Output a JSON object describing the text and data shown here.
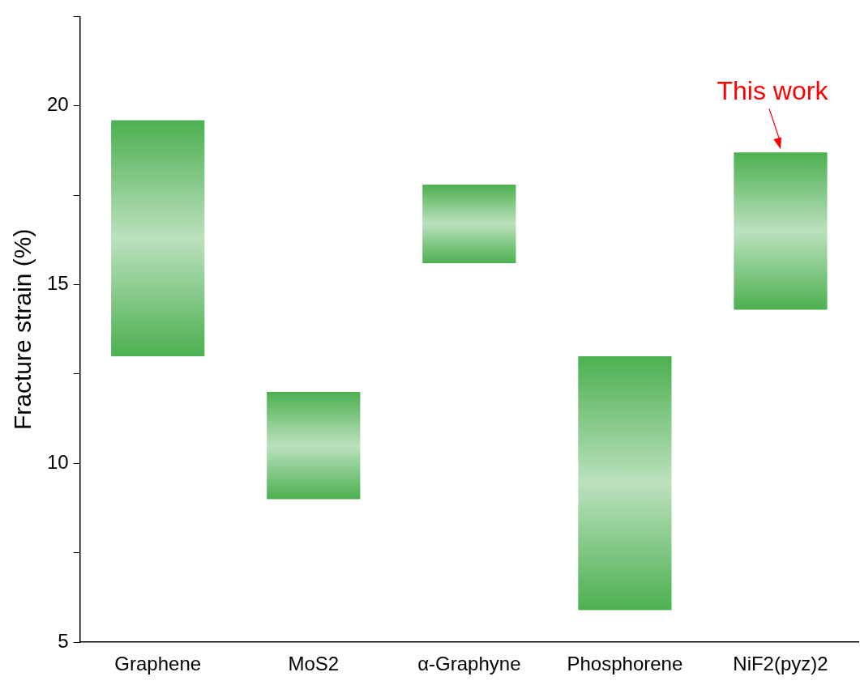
{
  "chart_data": {
    "type": "bar",
    "ylabel": "Fracture strain (%)",
    "categories": [
      "Graphene",
      "MoS2",
      "α-Graphyne",
      "Phosphorene",
      "NiF2(pyz)2"
    ],
    "base": [
      13.0,
      9.0,
      15.6,
      5.9,
      14.3
    ],
    "values": [
      6.6,
      3.0,
      2.2,
      7.1,
      4.4
    ],
    "color": "#4cb050",
    "ylim": [
      5,
      22.5
    ],
    "yticks": [
      5,
      {
        "value": 7.5,
        "label": null
      },
      10,
      {
        "value": 12.5,
        "label": null
      },
      15,
      {
        "value": 17.5,
        "label": null
      },
      20,
      {
        "value": 22.5,
        "label": null
      }
    ],
    "grid": false,
    "legend": false,
    "annotations": [
      {
        "text": "This work",
        "x": "NiF2(pyz)2",
        "y": 18.7
      }
    ]
  }
}
